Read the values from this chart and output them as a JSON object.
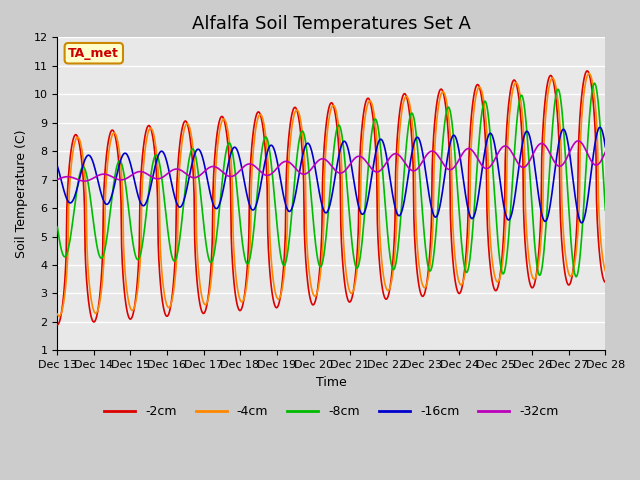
{
  "title": "Alfalfa Soil Temperatures Set A",
  "xlabel": "Time",
  "ylabel": "Soil Temperature (C)",
  "ylim": [
    1.0,
    12.0
  ],
  "yticks": [
    1.0,
    2.0,
    3.0,
    4.0,
    5.0,
    6.0,
    7.0,
    8.0,
    9.0,
    10.0,
    11.0,
    12.0
  ],
  "legend_labels": [
    "-2cm",
    "-4cm",
    "-8cm",
    "-16cm",
    "-32cm"
  ],
  "legend_colors": [
    "#dd0000",
    "#ff8800",
    "#00bb00",
    "#0000cc",
    "#bb00bb"
  ],
  "annotation_text": "TA_met",
  "annotation_color": "#cc0000",
  "annotation_bg": "#ffffcc",
  "x_tick_labels": [
    "Dec 13",
    "Dec 14",
    "Dec 15",
    "Dec 16",
    "Dec 17",
    "Dec 18",
    "Dec 19",
    "Dec 20",
    "Dec 21",
    "Dec 22",
    "Dec 23",
    "Dec 24",
    "Dec 25",
    "Dec 26",
    "Dec 27",
    "Dec 28"
  ],
  "title_fontsize": 13,
  "label_fontsize": 9,
  "tick_fontsize": 8
}
